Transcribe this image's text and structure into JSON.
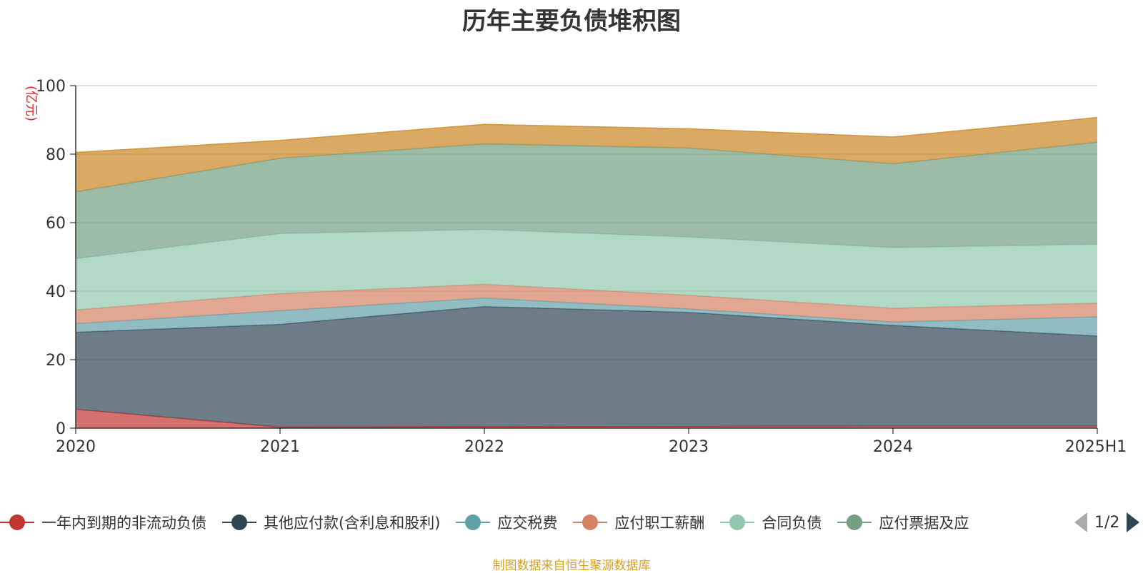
{
  "chart_data": {
    "type": "area",
    "stacked": true,
    "title": "历年主要负债堆积图",
    "ylabel": "(亿元)",
    "xlabel": "",
    "ylim": [
      0,
      100
    ],
    "yticks": [
      0,
      20,
      40,
      60,
      80,
      100
    ],
    "categories": [
      "2020",
      "2021",
      "2022",
      "2023",
      "2024",
      "2025H1"
    ],
    "grid": true,
    "legend_position": "bottom",
    "series": [
      {
        "name": "一年内到期的非流动负债",
        "color": "#c23531",
        "values": [
          5.5,
          0.3,
          0.4,
          0.5,
          0.6,
          0.6
        ]
      },
      {
        "name": "其他应付款(含利息和股利)",
        "color": "#2f4554",
        "values": [
          22.5,
          30.0,
          35.1,
          33.3,
          29.4,
          26.3
        ]
      },
      {
        "name": "应交税费",
        "color": "#61a0a8",
        "values": [
          2.5,
          4.0,
          2.5,
          1.0,
          1.0,
          5.6
        ]
      },
      {
        "name": "应付职工薪酬",
        "color": "#d48265",
        "values": [
          4.0,
          5.0,
          4.0,
          4.0,
          4.0,
          4.0
        ]
      },
      {
        "name": "合同负债",
        "color": "#91c7ae",
        "values": [
          15.0,
          17.5,
          16.0,
          17.0,
          17.7,
          17.2
        ]
      },
      {
        "name": "应付票据及应付账款",
        "color": "#749f83",
        "values": [
          19.5,
          22.0,
          25.0,
          26.0,
          24.5,
          29.8
        ]
      },
      {
        "name": "",
        "color": "#ca8622",
        "values": [
          11.5,
          5.2,
          5.7,
          5.6,
          7.8,
          7.2
        ]
      }
    ]
  },
  "legend": {
    "visible_labels": [
      "一年内到期的非流动负债",
      "其他应付款(含利息和股利)",
      "应交税费",
      "应付职工薪酬",
      "合同负债",
      "应付票据及应"
    ],
    "page_indicator": "1/2"
  },
  "footer": {
    "source_note": "制图数据来自恒生聚源数据库"
  }
}
